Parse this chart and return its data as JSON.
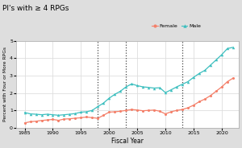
{
  "title": "PI's with ≥ 4 RPGs",
  "xlabel": "Fiscal Year",
  "ylabel": "Percent with Four or More RPGs",
  "xlim": [
    1983.5,
    2023
  ],
  "ylim": [
    0,
    5
  ],
  "yticks": [
    0,
    1,
    2,
    3,
    4,
    5
  ],
  "xticks": [
    1985,
    1990,
    1995,
    2000,
    2005,
    2010,
    2015,
    2020
  ],
  "vlines": [
    1998,
    2003,
    2013
  ],
  "female_color": "#F4806A",
  "male_color": "#3DBFBF",
  "fig_bg_color": "#DEDEDE",
  "plot_bg_color": "#FFFFFF",
  "grid_color": "#DEDEDE",
  "female_x": [
    1985,
    1986,
    1987,
    1988,
    1989,
    1990,
    1991,
    1992,
    1993,
    1994,
    1995,
    1996,
    1997,
    1998,
    1999,
    2000,
    2001,
    2002,
    2003,
    2004,
    2005,
    2006,
    2007,
    2008,
    2009,
    2010,
    2011,
    2012,
    2013,
    2014,
    2015,
    2016,
    2017,
    2018,
    2019,
    2020,
    2021,
    2022
  ],
  "female_y": [
    0.28,
    0.35,
    0.38,
    0.42,
    0.45,
    0.48,
    0.43,
    0.5,
    0.52,
    0.55,
    0.58,
    0.62,
    0.58,
    0.55,
    0.72,
    0.9,
    0.92,
    0.95,
    1.0,
    1.05,
    1.02,
    0.98,
    1.0,
    1.02,
    0.95,
    0.8,
    0.92,
    1.0,
    1.05,
    1.15,
    1.3,
    1.5,
    1.65,
    1.85,
    2.1,
    2.35,
    2.65,
    2.85
  ],
  "male_x": [
    1985,
    1986,
    1987,
    1988,
    1989,
    1990,
    1991,
    1992,
    1993,
    1994,
    1995,
    1996,
    1997,
    1998,
    1999,
    2000,
    2001,
    2002,
    2003,
    2004,
    2005,
    2006,
    2007,
    2008,
    2009,
    2010,
    2011,
    2012,
    2013,
    2014,
    2015,
    2016,
    2017,
    2018,
    2019,
    2020,
    2021,
    2022
  ],
  "male_y": [
    0.88,
    0.8,
    0.78,
    0.75,
    0.78,
    0.75,
    0.72,
    0.75,
    0.78,
    0.82,
    0.9,
    0.92,
    1.0,
    1.22,
    1.42,
    1.7,
    1.92,
    2.1,
    2.35,
    2.52,
    2.42,
    2.35,
    2.32,
    2.28,
    2.3,
    2.02,
    2.18,
    2.35,
    2.5,
    2.65,
    2.9,
    3.12,
    3.3,
    3.6,
    3.9,
    4.2,
    4.55,
    4.62
  ]
}
